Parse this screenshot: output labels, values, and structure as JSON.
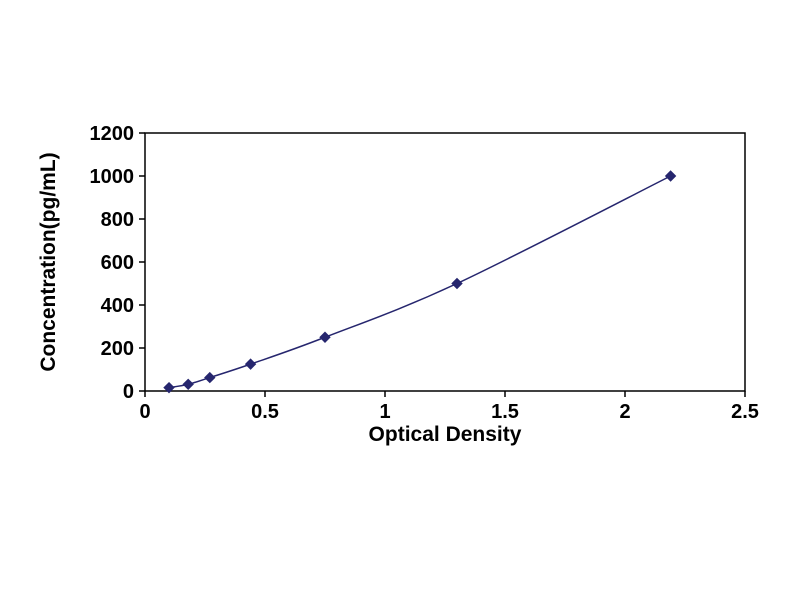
{
  "chart_data": {
    "type": "line",
    "title": "",
    "xlabel": "Optical Density",
    "ylabel": "Concentration(pg/mL)",
    "x": [
      0.1,
      0.18,
      0.27,
      0.44,
      0.75,
      1.3,
      2.19
    ],
    "y": [
      15.6,
      31.2,
      62.5,
      125,
      250,
      500,
      1000
    ],
    "xlim": [
      0,
      2.5
    ],
    "ylim": [
      0,
      1200
    ],
    "xticks": [
      "0",
      "0.5",
      "1",
      "1.5",
      "2",
      "2.5"
    ],
    "yticks": [
      "0",
      "200",
      "400",
      "600",
      "800",
      "1000",
      "1200"
    ],
    "grid": false,
    "legend": "none",
    "marker": "diamond",
    "series_color": "#26266E",
    "axis_color": "#000000",
    "background": "#ffffff"
  }
}
